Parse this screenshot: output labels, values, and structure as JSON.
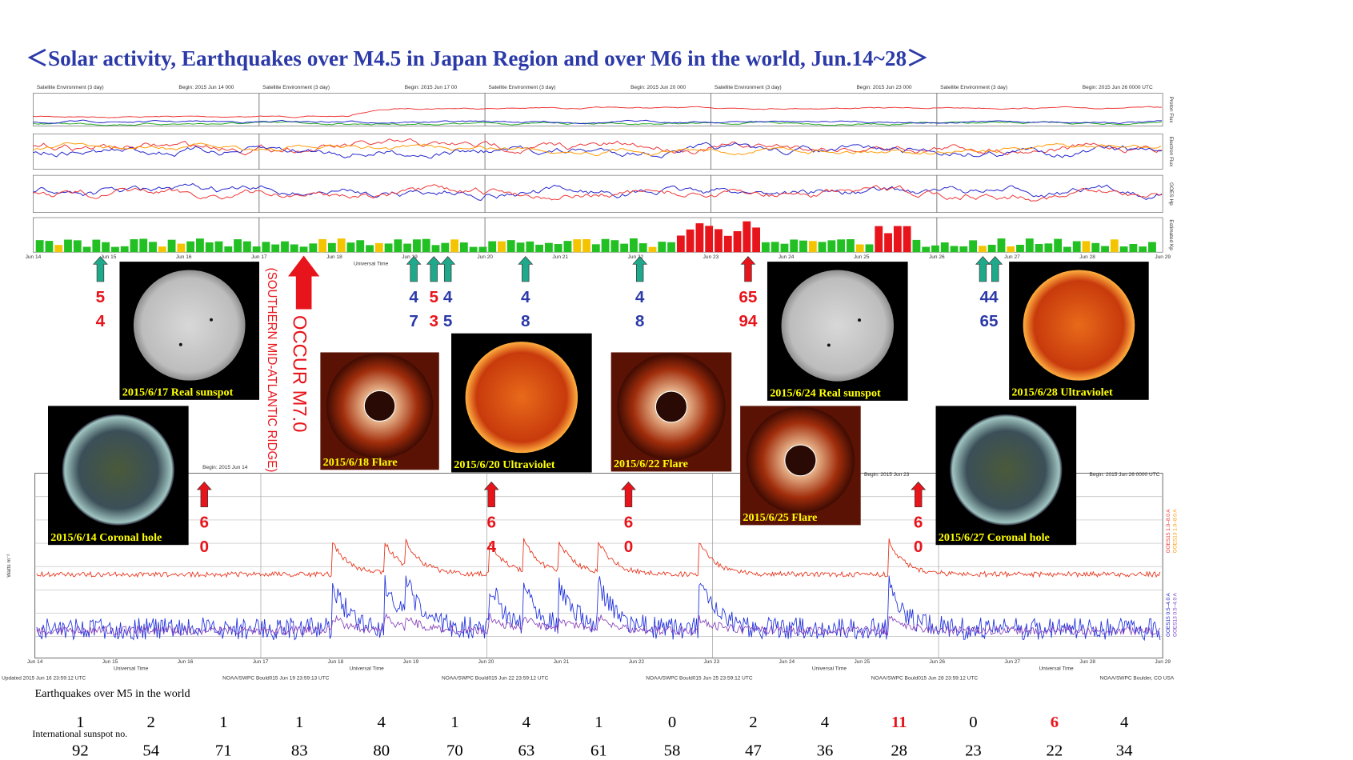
{
  "title": "＜Solar activity, Earthquakes over M4.5 in Japan Region and over M6 in the world, Jun.14~28＞",
  "top_panel": {
    "headers": [
      "Satellite Environment (3 day)",
      "Satellite Environment (3 day)",
      "Satellite Environment (3 day)",
      "Satellite Environment (3 day)",
      "Satellite Environment (3 day)"
    ],
    "begins": [
      "Begin: 2015 Jun 14 000",
      "Begin: 2015 Jun 17 00",
      "Begin: 2015 Jun 20 000",
      "Begin: 2015 Jun 23 000",
      "Begin: 2015 Jun 26 0000 UTC"
    ],
    "row_labels": [
      "Proton Flux",
      "Electron Flux",
      "GOES Hp",
      "Estimated Kp"
    ],
    "days": [
      "Jun 14",
      "Jun 15",
      "Jun 16",
      "Jun 17",
      "Jun 18",
      "Jun 19",
      "Jun 20",
      "Jun 21",
      "Jun 22",
      "Jun 23",
      "Jun 24",
      "Jun 25",
      "Jun 26",
      "Jun 27",
      "Jun 28",
      "Jun 29"
    ],
    "axis_title": "Universal Time"
  },
  "arrows": [
    {
      "top": "5",
      "bottom": "4",
      "color": "#e8141b"
    },
    {
      "top": "4",
      "bottom": "7",
      "color": "#2b3aa8"
    },
    {
      "top": "5",
      "bottom": "3",
      "color": "#e8141b"
    },
    {
      "top": "4",
      "bottom": "5",
      "color": "#2b3aa8"
    },
    {
      "top": "4",
      "bottom": "8",
      "color": "#2b3aa8"
    },
    {
      "top": "4",
      "bottom": "8",
      "color": "#2b3aa8"
    },
    {
      "top": "65",
      "bottom": "94",
      "color": "#e8141b"
    },
    {
      "top": "44",
      "bottom": "65",
      "color": "#2b3aa8"
    },
    {
      "top": "6",
      "bottom": "0",
      "color": "#e8141b"
    },
    {
      "top": "6",
      "bottom": "4",
      "color": "#e8141b"
    },
    {
      "top": "6",
      "bottom": "0",
      "color": "#e8141b"
    },
    {
      "top": "6",
      "bottom": "0",
      "color": "#e8141b"
    }
  ],
  "big_event": {
    "line1": "OCCUR M7.0",
    "line2": "(SOUTHERN MID-ATLANTIC RIDGE)"
  },
  "images": [
    "2015/6/17 Real sunspot",
    "2015/6/18 Flare",
    "2015/6/20 Ultraviolet",
    "2015/6/22 Flare",
    "2015/6/25 Flare",
    "2015/6/24 Real sunspot",
    "2015/6/28 Ultraviolet",
    "2015/6/14 Coronal hole",
    "2015/6/27 Coronal hole"
  ],
  "xray_panel": {
    "begins": [
      "Begin: 2015 Jun 14",
      "Begin: 2015 Jun 23",
      "Begin: 2015 Jun 26 0000 UTC"
    ],
    "y_title": "Watts m⁻²",
    "legend": [
      "GOES15 1.0–8.0 A",
      "GOES13 1.0–8.0 A",
      "GOES15 0.5–4.0 A",
      "GOES13 0.5–4.0 A"
    ],
    "footers": [
      "Updated 2015 Jun 16 23:59:12 UTC",
      "NOAA/SWPC Bould015 Jun 19 23:59:13 UTC",
      "NOAA/SWPC Bould015 Jun 22 23:59:12 UTC",
      "NOAA/SWPC Bould015 Jun 25 23:59:12 UTC",
      "NOAA/SWPC Bould015 Jun 28 23:59:12 UTC",
      "NOAA/SWPC Boulder, CO USA"
    ],
    "axis_title": "Universal Time"
  },
  "earthquakes": {
    "label": "Earthquakes over M5 in the world",
    "values": [
      1,
      2,
      1,
      1,
      4,
      1,
      4,
      1,
      0,
      2,
      4,
      11,
      0,
      6,
      4
    ],
    "colors": [
      "#000",
      "#000",
      "#000",
      "#000",
      "#000",
      "#000",
      "#000",
      "#000",
      "#000",
      "#000",
      "#000",
      "#e8141b",
      "#000",
      "#e8141b",
      "#000"
    ]
  },
  "sunspots": {
    "label": "International sunspot no.",
    "values": [
      92,
      54,
      71,
      83,
      80,
      70,
      63,
      61,
      58,
      47,
      36,
      28,
      23,
      22,
      34
    ]
  }
}
